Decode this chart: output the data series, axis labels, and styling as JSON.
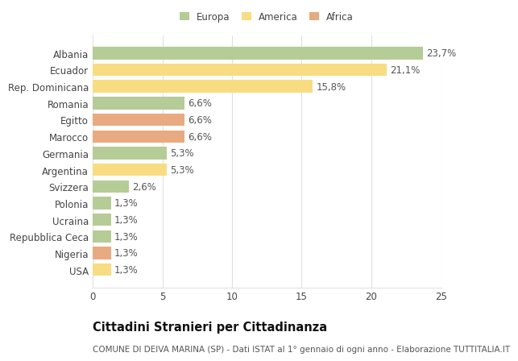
{
  "categories": [
    "Albania",
    "Ecuador",
    "Rep. Dominicana",
    "Romania",
    "Egitto",
    "Marocco",
    "Germania",
    "Argentina",
    "Svizzera",
    "Polonia",
    "Ucraina",
    "Repubblica Ceca",
    "Nigeria",
    "USA"
  ],
  "values": [
    23.7,
    21.1,
    15.8,
    6.6,
    6.6,
    6.6,
    5.3,
    5.3,
    2.6,
    1.3,
    1.3,
    1.3,
    1.3,
    1.3
  ],
  "labels": [
    "23,7%",
    "21,1%",
    "15,8%",
    "6,6%",
    "6,6%",
    "6,6%",
    "5,3%",
    "5,3%",
    "2,6%",
    "1,3%",
    "1,3%",
    "1,3%",
    "1,3%",
    "1,3%"
  ],
  "continents": [
    "Europa",
    "America",
    "America",
    "Europa",
    "Africa",
    "Africa",
    "Europa",
    "America",
    "Europa",
    "Europa",
    "Europa",
    "Europa",
    "Africa",
    "America"
  ],
  "colors": {
    "Europa": "#b5cc96",
    "America": "#f7dc82",
    "Africa": "#e8aa80"
  },
  "title": "Cittadini Stranieri per Cittadinanza",
  "subtitle": "COMUNE DI DEIVA MARINA (SP) - Dati ISTAT al 1° gennaio di ogni anno - Elaborazione TUTTITALIA.IT",
  "xlim": [
    0,
    25
  ],
  "xticks": [
    0,
    5,
    10,
    15,
    20,
    25
  ],
  "background_color": "#ffffff",
  "grid_color": "#e0e0e0",
  "bar_height": 0.75,
  "label_fontsize": 8.5,
  "tick_fontsize": 8.5,
  "title_fontsize": 10.5,
  "subtitle_fontsize": 7.5
}
